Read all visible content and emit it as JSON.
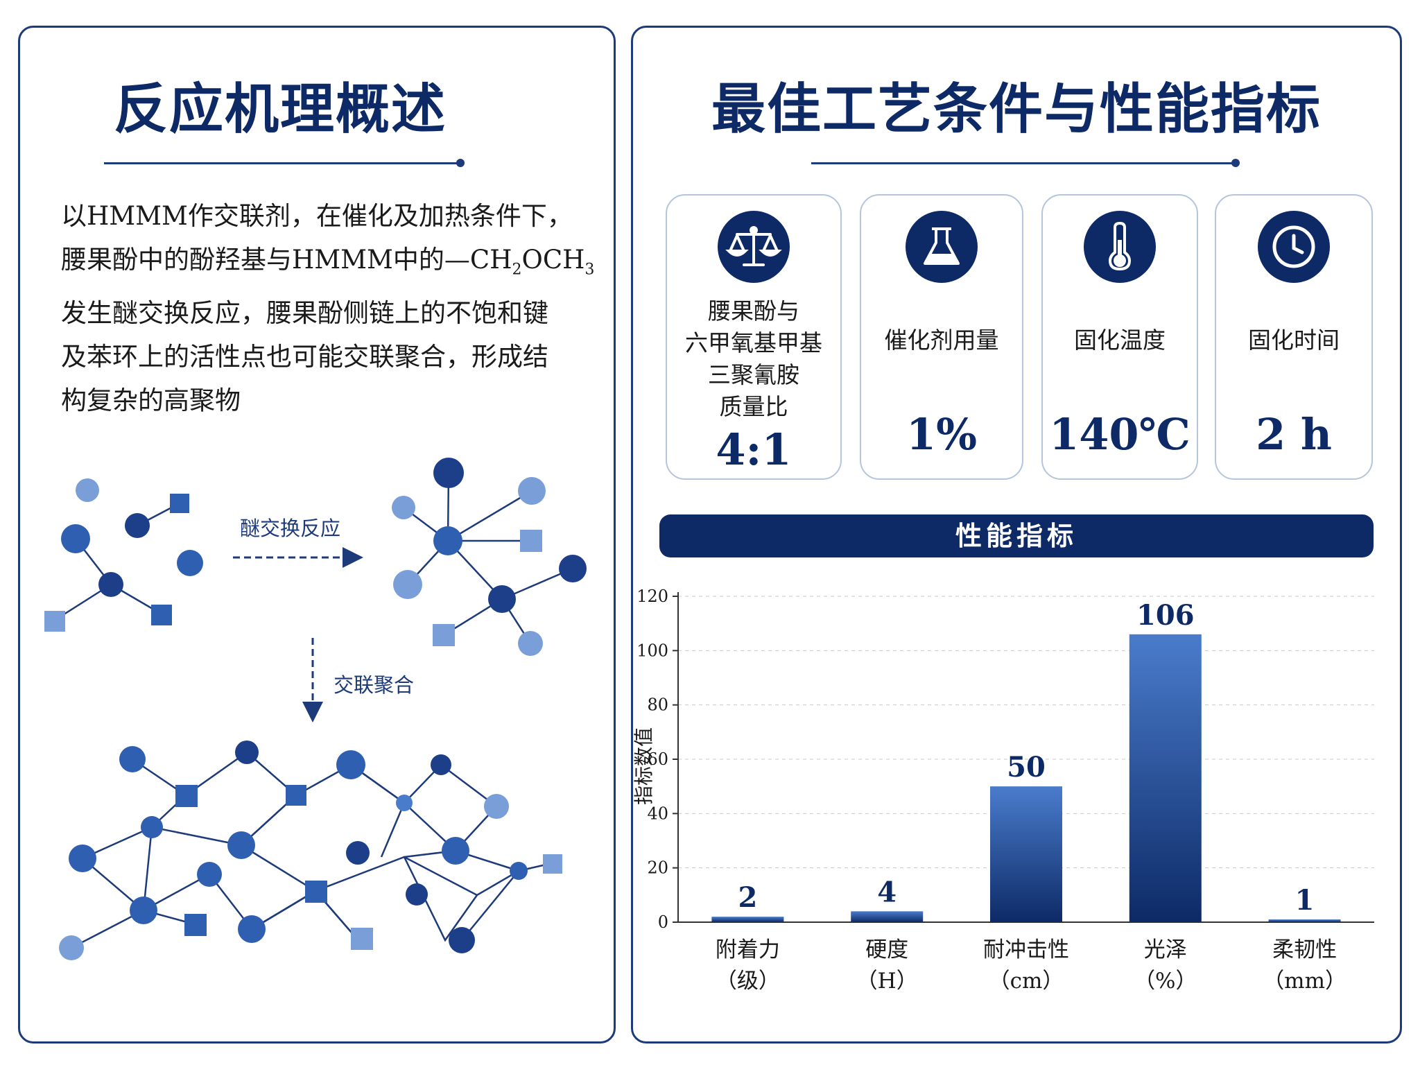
{
  "left": {
    "title": "反应机理概述",
    "mechanism": {
      "line1": "以HMMM作交联剂，在催化及加热条件下，",
      "line2_pre": "腰果酚中的酚羟基与HMMM中的—CH",
      "line2_sub1": "2",
      "line2_mid": "OCH",
      "line2_sub2": "3",
      "line3": "发生醚交换反应，腰果酚侧链上的不饱和键",
      "line4": "及苯环上的活性点也可能交联聚合，形成结",
      "line5": "构复杂的高聚物"
    },
    "network": {
      "step1_label": "醚交换反应",
      "step2_label": "交联聚合"
    }
  },
  "right": {
    "title": "最佳工艺条件与性能指标",
    "conditions": [
      {
        "icon": "balance-scale-icon",
        "label_lines": [
          "腰果酚与",
          "六甲氧基甲基",
          "三聚氰胺",
          "质量比"
        ],
        "value": "4:1"
      },
      {
        "icon": "flask-icon",
        "label_lines": [
          "催化剂用量"
        ],
        "value": "1%"
      },
      {
        "icon": "thermometer-icon",
        "label_lines": [
          "固化温度"
        ],
        "value": "140℃"
      },
      {
        "icon": "clock-icon",
        "label_lines": [
          "固化时间"
        ],
        "value": "2 h"
      }
    ],
    "perf_banner": "性能指标"
  },
  "colors": {
    "navy": "#0d2a66",
    "bar_top": "#4a7ccc",
    "bar_bottom": "#0d2a66",
    "node_dark": "#1d3f8a",
    "node_mid": "#2f5fb0",
    "node_light": "#7a9fd8"
  },
  "chart_data": {
    "type": "bar",
    "categories": [
      "附着力",
      "硬度",
      "耐冲击性",
      "光泽",
      "柔韧性"
    ],
    "category_units": [
      "（级）",
      "（H）",
      "（cm）",
      "（%）",
      "（mm）"
    ],
    "values": [
      2,
      4,
      50,
      106,
      1
    ],
    "value_labels": [
      "2",
      "4",
      "50",
      "106",
      "1"
    ],
    "title": "性能指标",
    "xlabel": "",
    "ylabel": "指标数值",
    "ylim": [
      0,
      120
    ],
    "yticks": [
      "0",
      "20",
      "40",
      "60",
      "80",
      "100",
      "120"
    ],
    "grid": true
  }
}
